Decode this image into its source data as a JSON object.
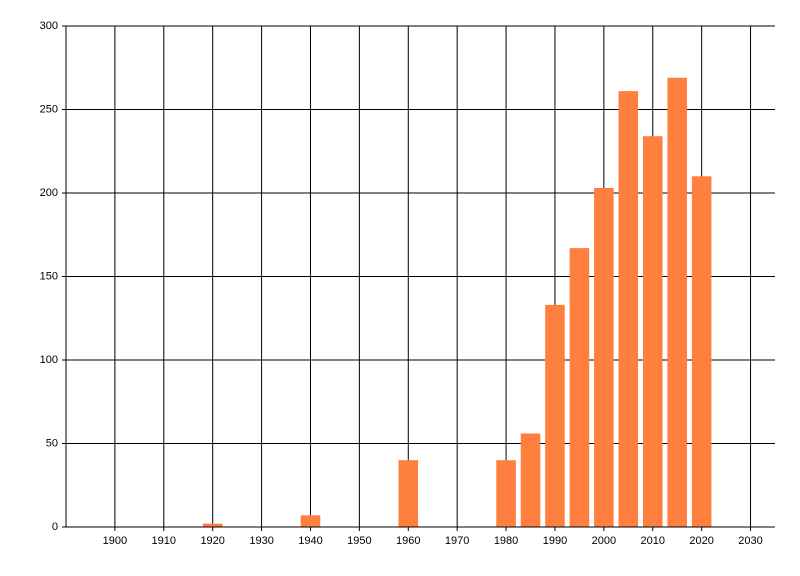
{
  "chart_data": {
    "type": "bar",
    "x": [
      1920,
      1940,
      1960,
      1980,
      1985,
      1990,
      1995,
      2000,
      2005,
      2010,
      2015,
      2020
    ],
    "values": [
      2,
      7,
      40,
      40,
      56,
      133,
      167,
      203,
      261,
      234,
      269,
      210
    ],
    "color": "#ff7f3f",
    "bar_width": 4,
    "xlim": [
      1890,
      2035
    ],
    "xticks": [
      1900,
      1910,
      1920,
      1930,
      1940,
      1950,
      1960,
      1970,
      1980,
      1990,
      2000,
      2010,
      2020,
      2030
    ],
    "ylim": [
      0,
      300
    ],
    "yticks": [
      0,
      50,
      100,
      150,
      200,
      250,
      300
    ],
    "grid": true
  }
}
